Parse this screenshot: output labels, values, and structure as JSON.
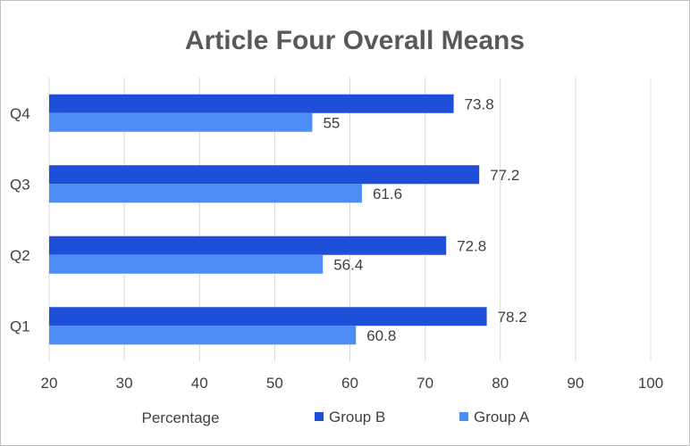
{
  "chart_data": {
    "type": "bar",
    "orientation": "horizontal",
    "title": "Article Four Overall Means",
    "xlabel": "Percentage",
    "ylabel": "",
    "categories": [
      "Q1",
      "Q2",
      "Q3",
      "Q4"
    ],
    "series": [
      {
        "name": "Group B",
        "color": "#1f4fd8",
        "values": [
          78.2,
          72.8,
          77.2,
          73.8
        ]
      },
      {
        "name": "Group A",
        "color": "#4d8df5",
        "values": [
          60.8,
          56.4,
          61.6,
          55
        ]
      }
    ],
    "xlim": [
      20,
      100
    ],
    "xticks": [
      20,
      30,
      40,
      50,
      60,
      70,
      80,
      90,
      100
    ],
    "grid": "vertical",
    "legend_position": "bottom"
  }
}
